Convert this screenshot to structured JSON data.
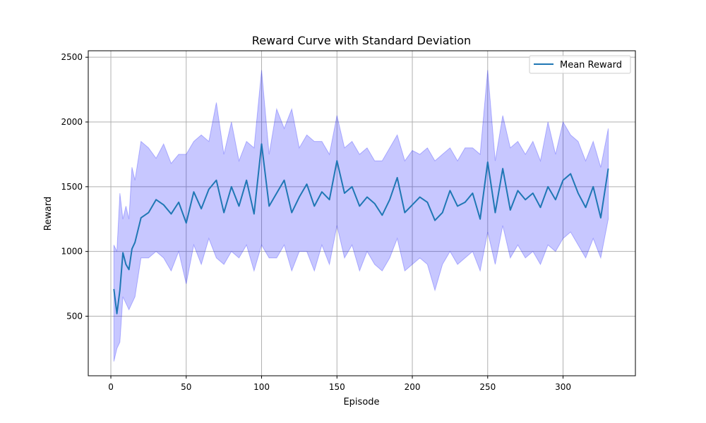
{
  "chart_data": {
    "type": "line",
    "title": "Reward Curve with Standard Deviation",
    "xlabel": "Episode",
    "ylabel": "Reward",
    "xlim": [
      -15,
      348
    ],
    "ylim": [
      40,
      2550
    ],
    "xticks": [
      0,
      50,
      100,
      150,
      200,
      250,
      300
    ],
    "yticks": [
      500,
      1000,
      1500,
      2000,
      2500
    ],
    "grid": true,
    "legend": {
      "position": "top-right",
      "entries": [
        "Mean Reward"
      ]
    },
    "colors": {
      "line": "#1f77b4",
      "band_fill": "#0000ff",
      "band_opacity": 0.22,
      "grid": "#b0b0b0"
    },
    "series": [
      {
        "name": "Mean Reward",
        "band": "mean ± std",
        "x": [
          2,
          4,
          6,
          8,
          10,
          12,
          14,
          16,
          20,
          25,
          30,
          35,
          40,
          45,
          50,
          55,
          60,
          65,
          70,
          75,
          80,
          85,
          90,
          95,
          100,
          105,
          110,
          115,
          120,
          125,
          130,
          135,
          140,
          145,
          150,
          155,
          160,
          165,
          170,
          175,
          180,
          185,
          190,
          195,
          200,
          205,
          210,
          215,
          220,
          225,
          230,
          235,
          240,
          245,
          250,
          255,
          260,
          265,
          270,
          275,
          280,
          285,
          290,
          295,
          300,
          305,
          310,
          315,
          320,
          325,
          330
        ],
        "mean": [
          710,
          520,
          700,
          990,
          900,
          860,
          1020,
          1070,
          1260,
          1300,
          1400,
          1360,
          1290,
          1380,
          1220,
          1460,
          1330,
          1480,
          1550,
          1300,
          1500,
          1350,
          1550,
          1290,
          1830,
          1350,
          1450,
          1550,
          1300,
          1420,
          1520,
          1350,
          1460,
          1400,
          1700,
          1450,
          1500,
          1350,
          1420,
          1370,
          1280,
          1400,
          1570,
          1300,
          1360,
          1420,
          1380,
          1240,
          1300,
          1470,
          1350,
          1380,
          1450,
          1250,
          1690,
          1300,
          1640,
          1320,
          1470,
          1400,
          1450,
          1340,
          1500,
          1400,
          1550,
          1600,
          1450,
          1340,
          1500,
          1260,
          1640
        ],
        "upper": [
          1050,
          1000,
          1450,
          1250,
          1350,
          1250,
          1650,
          1550,
          1850,
          1800,
          1720,
          1830,
          1680,
          1750,
          1750,
          1850,
          1900,
          1850,
          2150,
          1750,
          2000,
          1700,
          1850,
          1800,
          2400,
          1750,
          2100,
          1950,
          2100,
          1800,
          1900,
          1850,
          1850,
          1750,
          2050,
          1800,
          1850,
          1750,
          1800,
          1700,
          1700,
          1800,
          1900,
          1700,
          1780,
          1750,
          1800,
          1700,
          1750,
          1800,
          1700,
          1800,
          1800,
          1750,
          2400,
          1700,
          2050,
          1800,
          1850,
          1750,
          1850,
          1700,
          2000,
          1750,
          2000,
          1900,
          1850,
          1700,
          1850,
          1650,
          1950
        ],
        "lower": [
          150,
          250,
          300,
          650,
          600,
          550,
          600,
          650,
          950,
          950,
          1000,
          950,
          850,
          1000,
          750,
          1050,
          900,
          1100,
          950,
          900,
          1000,
          950,
          1050,
          850,
          1050,
          950,
          950,
          1050,
          850,
          1000,
          1000,
          850,
          1050,
          900,
          1200,
          950,
          1050,
          850,
          1000,
          900,
          850,
          950,
          1100,
          850,
          900,
          950,
          900,
          700,
          900,
          1000,
          900,
          950,
          1000,
          850,
          1150,
          900,
          1200,
          950,
          1050,
          950,
          1000,
          900,
          1050,
          1000,
          1100,
          1150,
          1050,
          950,
          1100,
          950,
          1250
        ]
      }
    ]
  }
}
